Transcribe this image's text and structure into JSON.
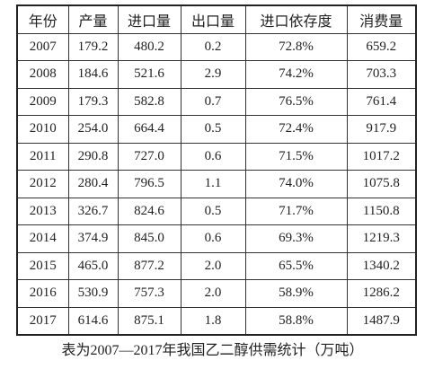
{
  "table": {
    "header": [
      "年份",
      "产量",
      "进口量",
      "出口量",
      "进口依存度",
      "消费量"
    ],
    "rows": [
      [
        "2007",
        "179.2",
        "480.2",
        "0.2",
        "72.8%",
        "659.2"
      ],
      [
        "2008",
        "184.6",
        "521.6",
        "2.9",
        "74.2%",
        "703.3"
      ],
      [
        "2009",
        "179.3",
        "582.8",
        "0.7",
        "76.5%",
        "761.4"
      ],
      [
        "2010",
        "254.0",
        "664.4",
        "0.5",
        "72.4%",
        "917.9"
      ],
      [
        "2011",
        "290.8",
        "727.0",
        "0.6",
        "71.5%",
        "1017.2"
      ],
      [
        "2012",
        "280.4",
        "796.5",
        "1.1",
        "74.0%",
        "1075.8"
      ],
      [
        "2013",
        "326.7",
        "824.6",
        "0.5",
        "71.7%",
        "1150.8"
      ],
      [
        "2014",
        "374.9",
        "845.0",
        "0.6",
        "69.3%",
        "1219.3"
      ],
      [
        "2015",
        "465.0",
        "877.2",
        "2.0",
        "65.5%",
        "1340.2"
      ],
      [
        "2016",
        "530.9",
        "757.3",
        "2.0",
        "58.9%",
        "1286.2"
      ],
      [
        "2017",
        "614.6",
        "875.1",
        "1.8",
        "58.8%",
        "1487.9"
      ]
    ]
  },
  "caption": "表为2007—2017年我国乙二醇供需统计（万吨）"
}
